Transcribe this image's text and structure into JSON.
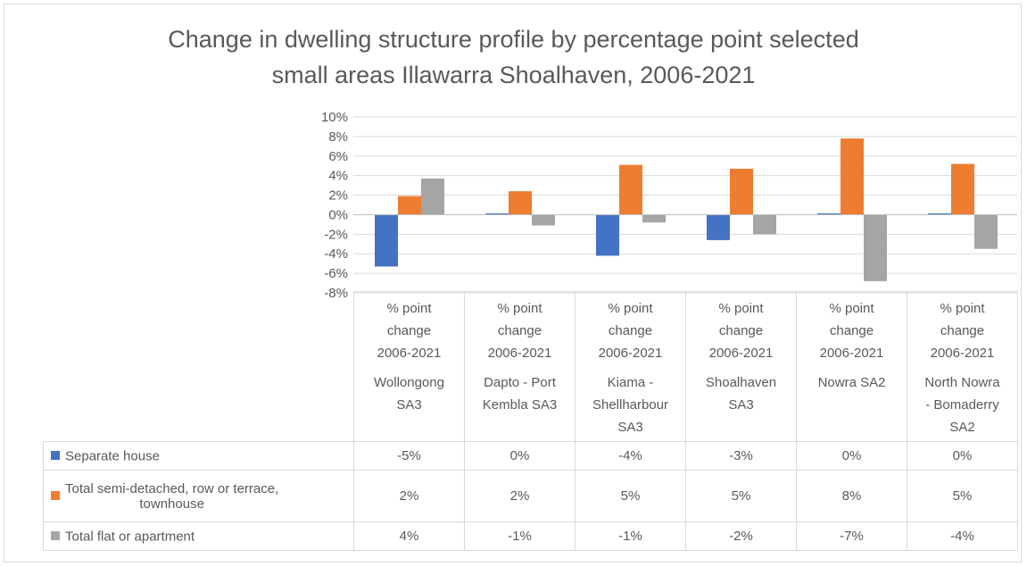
{
  "chart_data": {
    "type": "bar",
    "title": "Change in dwelling structure profile by percentage point selected small areas Illawarra Shoalhaven, 2006-2021",
    "title_lines": [
      "Change in dwelling structure profile by percentage point selected",
      "small areas Illawarra Shoalhaven, 2006-2021"
    ],
    "xlabel": "",
    "ylabel": "",
    "ylim": [
      -0.08,
      0.1
    ],
    "yticks": [
      "10%",
      "8%",
      "6%",
      "4%",
      "2%",
      "0%",
      "-2%",
      "-4%",
      "-6%",
      "-8%"
    ],
    "ytick_values": [
      0.1,
      0.08,
      0.06,
      0.04,
      0.02,
      0.0,
      -0.02,
      -0.04,
      -0.06,
      -0.08
    ],
    "grid": true,
    "legend": "data-table",
    "categories": [
      {
        "measure": [
          "% point",
          "change",
          "2006-2021"
        ],
        "name": [
          "Wollongong",
          "SA3"
        ]
      },
      {
        "measure": [
          "% point",
          "change",
          "2006-2021"
        ],
        "name": [
          "Dapto - Port",
          "Kembla SA3"
        ]
      },
      {
        "measure": [
          "% point",
          "change",
          "2006-2021"
        ],
        "name": [
          "Kiama -",
          "Shellharbour",
          "SA3"
        ]
      },
      {
        "measure": [
          "% point",
          "change",
          "2006-2021"
        ],
        "name": [
          "Shoalhaven",
          "SA3"
        ]
      },
      {
        "measure": [
          "% point",
          "change",
          "2006-2021"
        ],
        "name": [
          "Nowra SA2"
        ]
      },
      {
        "measure": [
          "% point",
          "change",
          "2006-2021"
        ],
        "name": [
          "North Nowra",
          "- Bomaderry",
          "SA2"
        ]
      }
    ],
    "series": [
      {
        "name": "Separate house",
        "name_lines": [
          "Separate house"
        ],
        "color": "#4472c4",
        "values": [
          -0.053,
          0.001,
          -0.042,
          -0.026,
          0.0,
          0.001
        ],
        "labels": [
          "-5%",
          "0%",
          "-4%",
          "-3%",
          "0%",
          "0%"
        ]
      },
      {
        "name": "Total semi-detached, row or terrace, townhouse",
        "name_lines": [
          "Total semi-detached, row or terrace,",
          "townhouse"
        ],
        "color": "#ed7d31",
        "values": [
          0.019,
          0.024,
          0.051,
          0.047,
          0.078,
          0.052
        ],
        "labels": [
          "2%",
          "2%",
          "5%",
          "5%",
          "8%",
          "5%"
        ]
      },
      {
        "name": "Total flat or apartment",
        "name_lines": [
          "Total flat or apartment"
        ],
        "color": "#a5a5a5",
        "values": [
          0.037,
          -0.011,
          -0.008,
          -0.02,
          -0.068,
          -0.035
        ],
        "labels": [
          "4%",
          "-1%",
          "-1%",
          "-2%",
          "-7%",
          "-4%"
        ]
      }
    ]
  }
}
